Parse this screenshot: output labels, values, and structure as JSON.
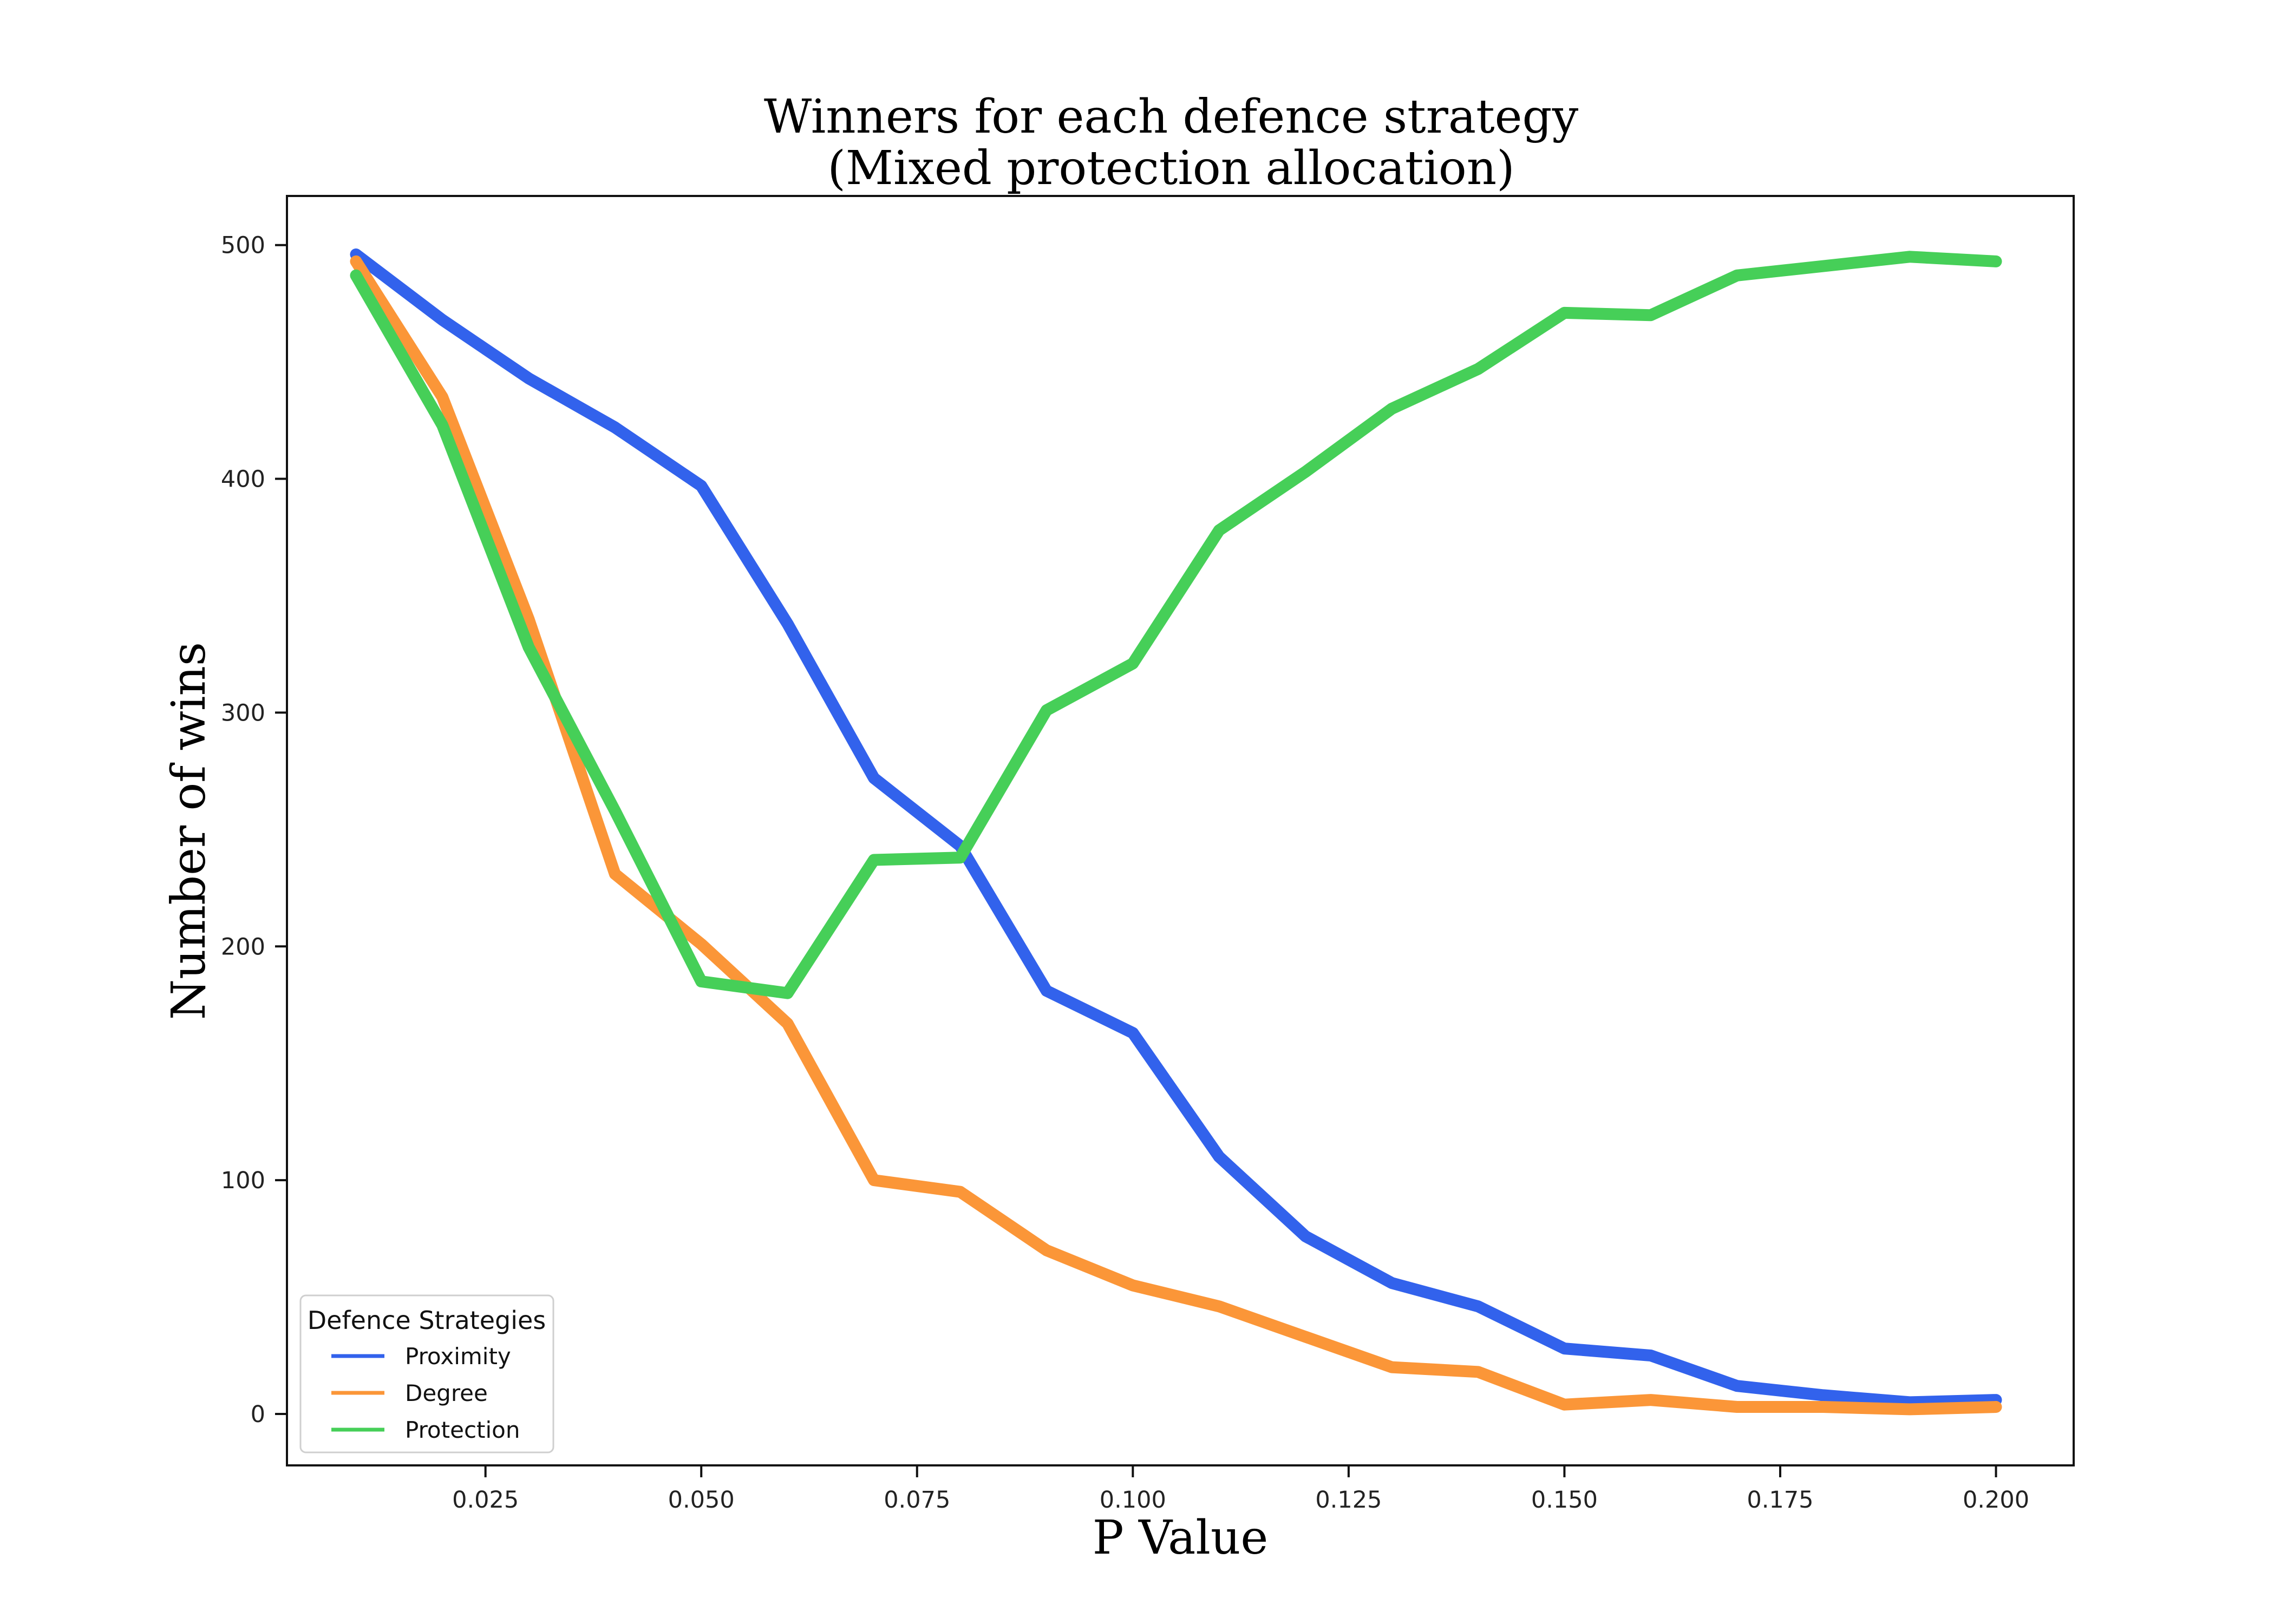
{
  "chart_data": {
    "type": "line",
    "title_line1": "Winners for each defence strategy",
    "title_line2": "(Mixed protection allocation)",
    "xlabel": "P Value",
    "ylabel": "Number of wins",
    "xlim": [
      0.002,
      0.209
    ],
    "ylim": [
      -22,
      521
    ],
    "xticks": [
      0.025,
      0.05,
      0.075,
      0.1,
      0.125,
      0.15,
      0.175,
      0.2
    ],
    "xtick_labels": [
      "0.025",
      "0.050",
      "0.075",
      "0.100",
      "0.125",
      "0.150",
      "0.175",
      "0.200"
    ],
    "yticks": [
      0,
      100,
      200,
      300,
      400,
      500
    ],
    "ytick_labels": [
      "0",
      "100",
      "200",
      "300",
      "400",
      "500"
    ],
    "grid": false,
    "legend": {
      "title": "Defence Strategies",
      "placement": "lower-left"
    },
    "x": [
      0.01,
      0.02,
      0.03,
      0.04,
      0.05,
      0.06,
      0.07,
      0.08,
      0.09,
      0.1,
      0.11,
      0.12,
      0.13,
      0.14,
      0.15,
      0.16,
      0.17,
      0.18,
      0.19,
      0.2
    ],
    "series": [
      {
        "name": "Proximity",
        "color": "#3262ec",
        "values": [
          496,
          468,
          443,
          422,
          397,
          338,
          272,
          243,
          181,
          163,
          110,
          76,
          56,
          46,
          28,
          25,
          12,
          8,
          5,
          6
        ]
      },
      {
        "name": "Degree",
        "color": "#fb9638",
        "values": [
          493,
          435,
          340,
          231,
          201,
          167,
          100,
          95,
          70,
          55,
          46,
          33,
          20,
          18,
          4,
          6,
          3,
          3,
          2,
          3
        ]
      },
      {
        "name": "Protection",
        "color": "#46cf58",
        "values": [
          487,
          423,
          328,
          258,
          185,
          180,
          237,
          238,
          301,
          321,
          378,
          403,
          430,
          447,
          471,
          470,
          487,
          491,
          495,
          493
        ]
      }
    ]
  }
}
